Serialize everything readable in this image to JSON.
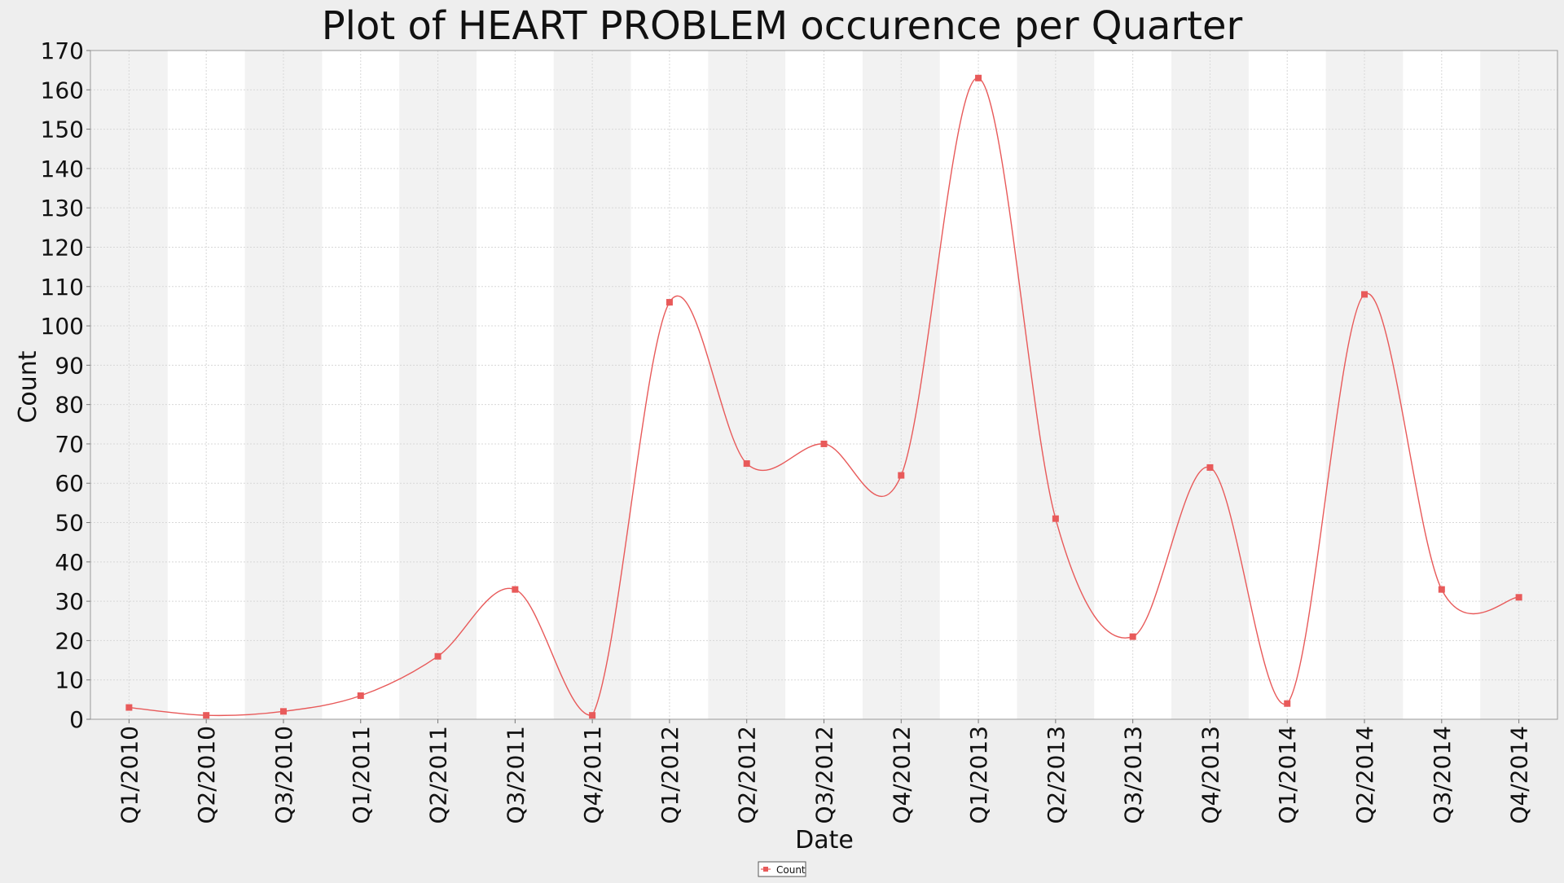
{
  "chart_data": {
    "type": "line",
    "title": "Plot of HEART PROBLEM occurence per Quarter",
    "xlabel": "Date",
    "ylabel": "Count",
    "ylim": [
      0,
      170
    ],
    "yticks": [
      0,
      10,
      20,
      30,
      40,
      50,
      60,
      70,
      80,
      90,
      100,
      110,
      120,
      130,
      140,
      150,
      160,
      170
    ],
    "categories": [
      "Q1/2010",
      "Q2/2010",
      "Q3/2010",
      "Q1/2011",
      "Q2/2011",
      "Q3/2011",
      "Q4/2011",
      "Q1/2012",
      "Q2/2012",
      "Q3/2012",
      "Q4/2012",
      "Q1/2013",
      "Q2/2013",
      "Q3/2013",
      "Q4/2013",
      "Q1/2014",
      "Q2/2014",
      "Q3/2014",
      "Q4/2014"
    ],
    "series": [
      {
        "name": "Count",
        "color": "#e85a5a",
        "values": [
          3,
          1,
          2,
          6,
          16,
          33,
          1,
          106,
          65,
          70,
          62,
          163,
          51,
          21,
          64,
          4,
          108,
          33,
          31
        ]
      }
    ],
    "grid": true,
    "alternating_bands": true,
    "legend": "bottom-center",
    "colors": {
      "band": "#f2f2f2",
      "gridline": "#d8d8d8",
      "background": "#eeeeee",
      "plot": "#ffffff"
    }
  }
}
